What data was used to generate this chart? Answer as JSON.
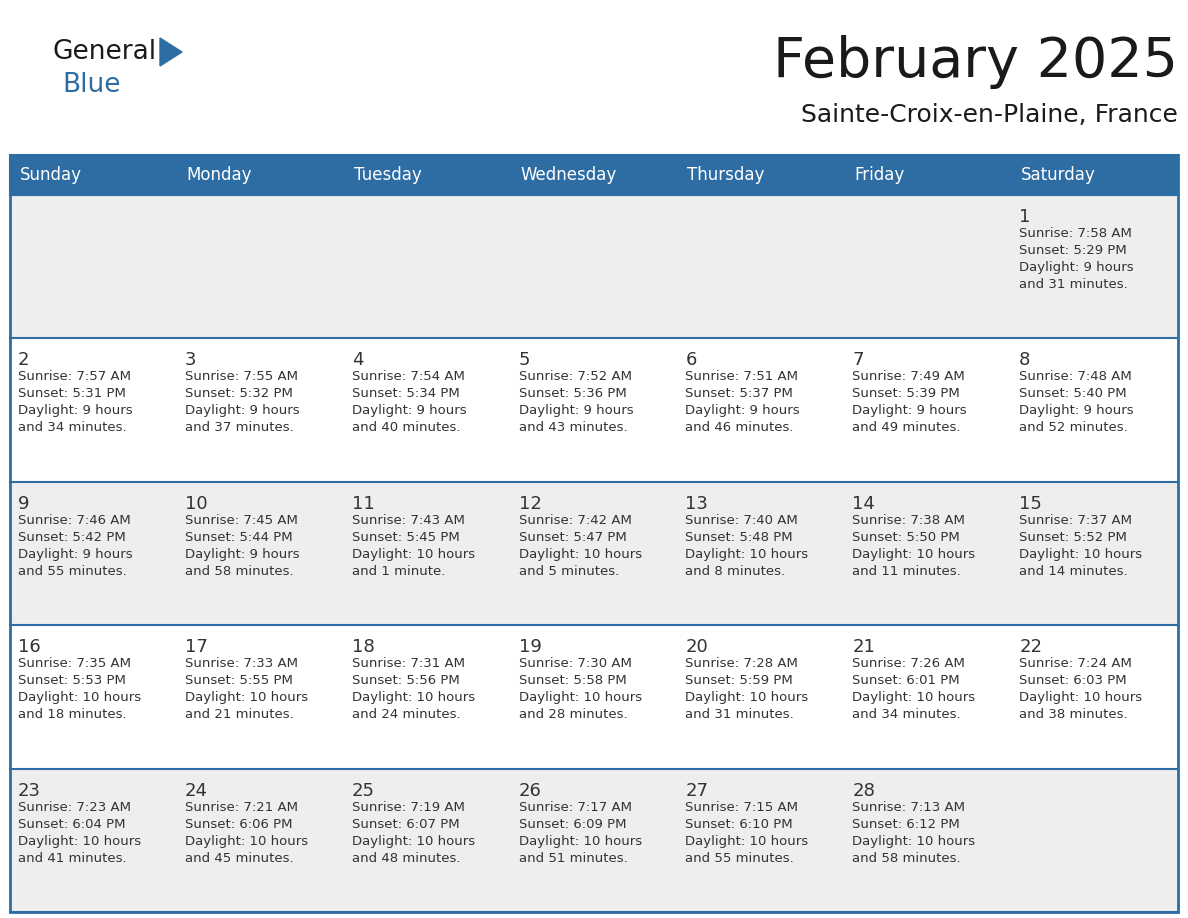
{
  "title": "February 2025",
  "subtitle": "Sainte-Croix-en-Plaine, France",
  "header_bg": "#2E6DA4",
  "header_text": "#FFFFFF",
  "cell_bg_even": "#EEEEEE",
  "cell_bg_odd": "#FFFFFF",
  "border_color": "#2E6DA4",
  "text_color": "#333333",
  "day_headers": [
    "Sunday",
    "Monday",
    "Tuesday",
    "Wednesday",
    "Thursday",
    "Friday",
    "Saturday"
  ],
  "days": [
    {
      "day": 1,
      "col": 6,
      "row": 0,
      "sunrise": "7:58 AM",
      "sunset": "5:29 PM",
      "daylight_h": "9 hours",
      "daylight_m": "31 minutes"
    },
    {
      "day": 2,
      "col": 0,
      "row": 1,
      "sunrise": "7:57 AM",
      "sunset": "5:31 PM",
      "daylight_h": "9 hours",
      "daylight_m": "34 minutes"
    },
    {
      "day": 3,
      "col": 1,
      "row": 1,
      "sunrise": "7:55 AM",
      "sunset": "5:32 PM",
      "daylight_h": "9 hours",
      "daylight_m": "37 minutes"
    },
    {
      "day": 4,
      "col": 2,
      "row": 1,
      "sunrise": "7:54 AM",
      "sunset": "5:34 PM",
      "daylight_h": "9 hours",
      "daylight_m": "40 minutes"
    },
    {
      "day": 5,
      "col": 3,
      "row": 1,
      "sunrise": "7:52 AM",
      "sunset": "5:36 PM",
      "daylight_h": "9 hours",
      "daylight_m": "43 minutes"
    },
    {
      "day": 6,
      "col": 4,
      "row": 1,
      "sunrise": "7:51 AM",
      "sunset": "5:37 PM",
      "daylight_h": "9 hours",
      "daylight_m": "46 minutes"
    },
    {
      "day": 7,
      "col": 5,
      "row": 1,
      "sunrise": "7:49 AM",
      "sunset": "5:39 PM",
      "daylight_h": "9 hours",
      "daylight_m": "49 minutes"
    },
    {
      "day": 8,
      "col": 6,
      "row": 1,
      "sunrise": "7:48 AM",
      "sunset": "5:40 PM",
      "daylight_h": "9 hours",
      "daylight_m": "52 minutes"
    },
    {
      "day": 9,
      "col": 0,
      "row": 2,
      "sunrise": "7:46 AM",
      "sunset": "5:42 PM",
      "daylight_h": "9 hours",
      "daylight_m": "55 minutes"
    },
    {
      "day": 10,
      "col": 1,
      "row": 2,
      "sunrise": "7:45 AM",
      "sunset": "5:44 PM",
      "daylight_h": "9 hours",
      "daylight_m": "58 minutes"
    },
    {
      "day": 11,
      "col": 2,
      "row": 2,
      "sunrise": "7:43 AM",
      "sunset": "5:45 PM",
      "daylight_h": "10 hours",
      "daylight_m": "1 minute"
    },
    {
      "day": 12,
      "col": 3,
      "row": 2,
      "sunrise": "7:42 AM",
      "sunset": "5:47 PM",
      "daylight_h": "10 hours",
      "daylight_m": "5 minutes"
    },
    {
      "day": 13,
      "col": 4,
      "row": 2,
      "sunrise": "7:40 AM",
      "sunset": "5:48 PM",
      "daylight_h": "10 hours",
      "daylight_m": "8 minutes"
    },
    {
      "day": 14,
      "col": 5,
      "row": 2,
      "sunrise": "7:38 AM",
      "sunset": "5:50 PM",
      "daylight_h": "10 hours",
      "daylight_m": "11 minutes"
    },
    {
      "day": 15,
      "col": 6,
      "row": 2,
      "sunrise": "7:37 AM",
      "sunset": "5:52 PM",
      "daylight_h": "10 hours",
      "daylight_m": "14 minutes"
    },
    {
      "day": 16,
      "col": 0,
      "row": 3,
      "sunrise": "7:35 AM",
      "sunset": "5:53 PM",
      "daylight_h": "10 hours",
      "daylight_m": "18 minutes"
    },
    {
      "day": 17,
      "col": 1,
      "row": 3,
      "sunrise": "7:33 AM",
      "sunset": "5:55 PM",
      "daylight_h": "10 hours",
      "daylight_m": "21 minutes"
    },
    {
      "day": 18,
      "col": 2,
      "row": 3,
      "sunrise": "7:31 AM",
      "sunset": "5:56 PM",
      "daylight_h": "10 hours",
      "daylight_m": "24 minutes"
    },
    {
      "day": 19,
      "col": 3,
      "row": 3,
      "sunrise": "7:30 AM",
      "sunset": "5:58 PM",
      "daylight_h": "10 hours",
      "daylight_m": "28 minutes"
    },
    {
      "day": 20,
      "col": 4,
      "row": 3,
      "sunrise": "7:28 AM",
      "sunset": "5:59 PM",
      "daylight_h": "10 hours",
      "daylight_m": "31 minutes"
    },
    {
      "day": 21,
      "col": 5,
      "row": 3,
      "sunrise": "7:26 AM",
      "sunset": "6:01 PM",
      "daylight_h": "10 hours",
      "daylight_m": "34 minutes"
    },
    {
      "day": 22,
      "col": 6,
      "row": 3,
      "sunrise": "7:24 AM",
      "sunset": "6:03 PM",
      "daylight_h": "10 hours",
      "daylight_m": "38 minutes"
    },
    {
      "day": 23,
      "col": 0,
      "row": 4,
      "sunrise": "7:23 AM",
      "sunset": "6:04 PM",
      "daylight_h": "10 hours",
      "daylight_m": "41 minutes"
    },
    {
      "day": 24,
      "col": 1,
      "row": 4,
      "sunrise": "7:21 AM",
      "sunset": "6:06 PM",
      "daylight_h": "10 hours",
      "daylight_m": "45 minutes"
    },
    {
      "day": 25,
      "col": 2,
      "row": 4,
      "sunrise": "7:19 AM",
      "sunset": "6:07 PM",
      "daylight_h": "10 hours",
      "daylight_m": "48 minutes"
    },
    {
      "day": 26,
      "col": 3,
      "row": 4,
      "sunrise": "7:17 AM",
      "sunset": "6:09 PM",
      "daylight_h": "10 hours",
      "daylight_m": "51 minutes"
    },
    {
      "day": 27,
      "col": 4,
      "row": 4,
      "sunrise": "7:15 AM",
      "sunset": "6:10 PM",
      "daylight_h": "10 hours",
      "daylight_m": "55 minutes"
    },
    {
      "day": 28,
      "col": 5,
      "row": 4,
      "sunrise": "7:13 AM",
      "sunset": "6:12 PM",
      "daylight_h": "10 hours",
      "daylight_m": "58 minutes"
    }
  ],
  "num_rows": 5,
  "num_cols": 7
}
